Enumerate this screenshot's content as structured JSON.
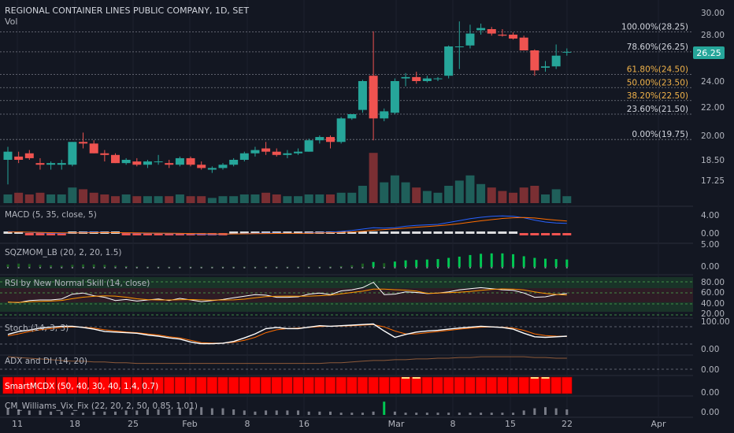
{
  "header": {
    "title": "REGIONAL CONTAINER LINES PUBLIC COMPANY, 1D, SET",
    "vol_label": "Vol"
  },
  "last_price": {
    "label": "26.25",
    "value": 26.25
  },
  "colors": {
    "bg": "#131722",
    "up": "#26a69a",
    "down": "#ef5350",
    "grid": "#2a2e39",
    "text": "#b2b5be",
    "fib": "#f0b24a",
    "smart": "#ff0000"
  },
  "fib_levels": [
    {
      "label": "100.00%(28.25)",
      "value": 28.25,
      "color": "#d1d4dc"
    },
    {
      "label": "78.60%(26.25)",
      "value": 26.25,
      "color": "#d1d4dc"
    },
    {
      "label": "61.80%(24.50)",
      "value": 24.5,
      "color": "#f0b24a"
    },
    {
      "label": "50.00%(23.50)",
      "value": 23.5,
      "color": "#f0b24a"
    },
    {
      "label": "38.20%(22.50)",
      "value": 22.5,
      "color": "#f0b24a"
    },
    {
      "label": "23.60%(21.50)",
      "value": 21.5,
      "color": "#d1d4dc"
    },
    {
      "label": "0.00%(19.75)",
      "value": 19.75,
      "color": "#d1d4dc"
    }
  ],
  "chart_data": {
    "type": "candlestick",
    "price_axis_ticks": [
      "30.00",
      "28.00",
      "26.00",
      "24.00",
      "22.00",
      "20.00",
      "18.50",
      "17.25"
    ],
    "price_axis_values": [
      30,
      28,
      26,
      24,
      22,
      20,
      18.5,
      17.25
    ],
    "x_tick_labels": [
      "11",
      "18",
      "25",
      "Feb",
      "8",
      "16",
      "Mar",
      "8",
      "15",
      "22",
      "Apr"
    ],
    "candles": [
      {
        "o": 18.5,
        "h": 19.3,
        "l": 17.0,
        "c": 19.0
      },
      {
        "o": 18.7,
        "h": 19.0,
        "l": 18.3,
        "c": 18.5
      },
      {
        "o": 18.9,
        "h": 19.1,
        "l": 18.5,
        "c": 18.6
      },
      {
        "o": 18.3,
        "h": 18.6,
        "l": 17.9,
        "c": 18.2
      },
      {
        "o": 18.2,
        "h": 18.4,
        "l": 17.9,
        "c": 18.3
      },
      {
        "o": 18.2,
        "h": 18.5,
        "l": 17.9,
        "c": 18.3
      },
      {
        "o": 18.2,
        "h": 19.6,
        "l": 18.1,
        "c": 19.6
      },
      {
        "o": 19.6,
        "h": 20.2,
        "l": 19.2,
        "c": 19.5
      },
      {
        "o": 19.5,
        "h": 19.7,
        "l": 18.9,
        "c": 18.9
      },
      {
        "o": 18.9,
        "h": 19.1,
        "l": 18.4,
        "c": 18.8
      },
      {
        "o": 18.8,
        "h": 18.9,
        "l": 18.3,
        "c": 18.3
      },
      {
        "o": 18.3,
        "h": 18.6,
        "l": 18.2,
        "c": 18.5
      },
      {
        "o": 18.4,
        "h": 18.6,
        "l": 18.1,
        "c": 18.2
      },
      {
        "o": 18.2,
        "h": 18.5,
        "l": 18.0,
        "c": 18.4
      },
      {
        "o": 18.4,
        "h": 18.8,
        "l": 18.2,
        "c": 18.4
      },
      {
        "o": 18.3,
        "h": 18.5,
        "l": 18.0,
        "c": 18.2
      },
      {
        "o": 18.2,
        "h": 18.7,
        "l": 18.1,
        "c": 18.6
      },
      {
        "o": 18.6,
        "h": 18.7,
        "l": 18.1,
        "c": 18.2
      },
      {
        "o": 18.2,
        "h": 18.4,
        "l": 17.9,
        "c": 18.0
      },
      {
        "o": 17.9,
        "h": 18.1,
        "l": 17.7,
        "c": 18.0
      },
      {
        "o": 18.0,
        "h": 18.3,
        "l": 17.9,
        "c": 18.2
      },
      {
        "o": 18.2,
        "h": 18.6,
        "l": 18.1,
        "c": 18.5
      },
      {
        "o": 18.5,
        "h": 19.0,
        "l": 18.4,
        "c": 18.9
      },
      {
        "o": 18.9,
        "h": 19.3,
        "l": 18.7,
        "c": 19.1
      },
      {
        "o": 19.2,
        "h": 19.6,
        "l": 18.8,
        "c": 19.0
      },
      {
        "o": 19.0,
        "h": 19.2,
        "l": 18.7,
        "c": 18.8
      },
      {
        "o": 18.8,
        "h": 19.1,
        "l": 18.6,
        "c": 18.9
      },
      {
        "o": 18.9,
        "h": 19.2,
        "l": 18.8,
        "c": 19.0
      },
      {
        "o": 19.0,
        "h": 19.8,
        "l": 19.0,
        "c": 19.7
      },
      {
        "o": 19.7,
        "h": 20.0,
        "l": 19.5,
        "c": 19.9
      },
      {
        "o": 19.9,
        "h": 20.0,
        "l": 19.2,
        "c": 19.6
      },
      {
        "o": 19.6,
        "h": 21.3,
        "l": 19.5,
        "c": 21.2
      },
      {
        "o": 21.2,
        "h": 21.5,
        "l": 21.1,
        "c": 21.5
      },
      {
        "o": 21.8,
        "h": 24.1,
        "l": 21.6,
        "c": 24.0
      },
      {
        "o": 24.4,
        "h": 28.3,
        "l": 19.7,
        "c": 21.2
      },
      {
        "o": 21.2,
        "h": 21.9,
        "l": 21.0,
        "c": 21.7
      },
      {
        "o": 21.6,
        "h": 24.2,
        "l": 21.5,
        "c": 24.0
      },
      {
        "o": 24.2,
        "h": 24.6,
        "l": 23.6,
        "c": 24.3
      },
      {
        "o": 24.3,
        "h": 24.7,
        "l": 23.8,
        "c": 24.0
      },
      {
        "o": 24.0,
        "h": 24.4,
        "l": 23.9,
        "c": 24.2
      },
      {
        "o": 24.2,
        "h": 24.3,
        "l": 24.0,
        "c": 24.2
      },
      {
        "o": 24.4,
        "h": 26.9,
        "l": 24.2,
        "c": 26.8
      },
      {
        "o": 26.8,
        "h": 29.2,
        "l": 24.9,
        "c": 26.8
      },
      {
        "o": 26.9,
        "h": 28.9,
        "l": 26.6,
        "c": 28.1
      },
      {
        "o": 28.4,
        "h": 29.0,
        "l": 28.0,
        "c": 28.6
      },
      {
        "o": 28.5,
        "h": 28.7,
        "l": 27.9,
        "c": 28.1
      },
      {
        "o": 28.0,
        "h": 28.5,
        "l": 27.8,
        "c": 27.9
      },
      {
        "o": 28.0,
        "h": 28.2,
        "l": 27.5,
        "c": 27.6
      },
      {
        "o": 27.7,
        "h": 27.9,
        "l": 26.5,
        "c": 26.4
      },
      {
        "o": 26.4,
        "h": 26.5,
        "l": 24.4,
        "c": 24.8
      },
      {
        "o": 25.0,
        "h": 25.5,
        "l": 24.7,
        "c": 25.1
      },
      {
        "o": 25.1,
        "h": 27.0,
        "l": 24.9,
        "c": 25.9
      },
      {
        "o": 26.2,
        "h": 26.6,
        "l": 25.9,
        "c": 26.25
      }
    ],
    "volume": [
      0.5,
      0.6,
      0.5,
      0.6,
      0.5,
      0.5,
      0.9,
      0.8,
      0.6,
      0.5,
      0.4,
      0.5,
      0.4,
      0.4,
      0.4,
      0.4,
      0.5,
      0.4,
      0.4,
      0.3,
      0.4,
      0.4,
      0.5,
      0.5,
      0.6,
      0.5,
      0.4,
      0.4,
      0.5,
      0.5,
      0.5,
      0.6,
      0.6,
      1.0,
      2.9,
      1.2,
      1.6,
      1.2,
      0.9,
      0.7,
      0.6,
      1.0,
      1.3,
      1.6,
      1.1,
      0.9,
      0.7,
      0.6,
      0.9,
      1.0,
      0.5,
      0.8,
      0.4
    ],
    "indicators": [
      {
        "label": "MACD (5, 35, close, 5)",
        "ticks": [
          "4.00",
          "0.00"
        ]
      },
      {
        "label": "SQZMOM_LB (20, 2, 20, 1.5)",
        "ticks": [
          "5.00",
          "0.00"
        ]
      },
      {
        "label": "RSI by New Normal Skill (14, close)",
        "ticks": [
          "80.00",
          "60.00",
          "40.00",
          "20.00"
        ]
      },
      {
        "label": "Stoch (14, 3, 3)",
        "ticks": [
          "100.00",
          "0.00"
        ]
      },
      {
        "label": "ADX and DI (14, 20)",
        "ticks": [
          "0.00"
        ]
      },
      {
        "label": "SmartMCDX (50, 40, 30, 40, 1.4, 0.7)",
        "ticks": [
          "0.00"
        ]
      },
      {
        "label": "CM_Williams_Vix_Fix (22, 20, 2, 50, 0.85, 1.01)",
        "ticks": [
          "0.00"
        ]
      }
    ],
    "rsi": [
      43,
      42,
      46,
      47,
      47,
      49,
      58,
      60,
      55,
      52,
      46,
      48,
      45,
      47,
      49,
      46,
      50,
      47,
      44,
      46,
      48,
      51,
      54,
      57,
      56,
      52,
      52,
      53,
      58,
      60,
      57,
      64,
      66,
      70,
      80,
      57,
      58,
      62,
      61,
      59,
      60,
      62,
      66,
      68,
      70,
      68,
      66,
      65,
      60,
      52,
      53,
      57,
      59
    ],
    "stoch_k": [
      60,
      70,
      75,
      82,
      85,
      88,
      88,
      84,
      78,
      70,
      68,
      66,
      64,
      58,
      54,
      48,
      44,
      34,
      28,
      28,
      30,
      36,
      48,
      62,
      80,
      84,
      80,
      80,
      85,
      90,
      88,
      90,
      92,
      94,
      96,
      72,
      50,
      60,
      68,
      72,
      74,
      78,
      82,
      85,
      88,
      86,
      84,
      78,
      64,
      52,
      50,
      52,
      54
    ],
    "stoch_d": [
      55,
      62,
      70,
      76,
      80,
      84,
      86,
      85,
      82,
      76,
      72,
      68,
      66,
      62,
      58,
      52,
      48,
      40,
      32,
      30,
      30,
      33,
      40,
      50,
      66,
      76,
      80,
      82,
      84,
      87,
      88,
      89,
      90,
      92,
      94,
      86,
      72,
      62,
      62,
      66,
      70,
      74,
      78,
      82,
      85,
      86,
      85,
      82,
      74,
      62,
      56,
      54,
      53
    ],
    "macd": [
      0.5,
      0.4,
      0.3,
      0.2,
      0.15,
      0.1,
      0.2,
      0.3,
      0.35,
      0.3,
      0.25,
      0.2,
      0.15,
      0.1,
      0.1,
      0.05,
      0.05,
      0.0,
      -0.1,
      -0.15,
      -0.1,
      0.0,
      0.05,
      0.1,
      0.15,
      0.15,
      0.1,
      0.1,
      0.2,
      0.3,
      0.35,
      0.5,
      0.7,
      1.0,
      1.3,
      1.2,
      1.3,
      1.6,
      1.8,
      1.9,
      2.0,
      2.4,
      2.8,
      3.2,
      3.5,
      3.7,
      3.8,
      3.7,
      3.4,
      2.9,
      2.5,
      2.3,
      2.2
    ],
    "signal": [
      0.4,
      0.4,
      0.35,
      0.3,
      0.25,
      0.2,
      0.2,
      0.22,
      0.25,
      0.26,
      0.25,
      0.23,
      0.2,
      0.17,
      0.15,
      0.12,
      0.1,
      0.07,
      0.03,
      -0.02,
      -0.03,
      -0.02,
      0.0,
      0.03,
      0.06,
      0.09,
      0.1,
      0.1,
      0.13,
      0.18,
      0.23,
      0.3,
      0.4,
      0.55,
      0.75,
      0.9,
      1.05,
      1.2,
      1.4,
      1.55,
      1.7,
      1.9,
      2.15,
      2.45,
      2.75,
      3.0,
      3.25,
      3.4,
      3.45,
      3.35,
      3.1,
      2.9,
      2.7
    ],
    "sqz": [
      0.6,
      0.8,
      0.7,
      0.5,
      0.4,
      0.3,
      0.5,
      0.6,
      0.6,
      0.5,
      0.3,
      0.2,
      0.1,
      0.05,
      0.05,
      0.05,
      0.05,
      0.05,
      0.05,
      0.05,
      0.05,
      0.05,
      0.05,
      0.05,
      0.05,
      0.05,
      0.05,
      0.05,
      0.05,
      0.05,
      0.1,
      0.2,
      0.4,
      0.8,
      1.2,
      0.9,
      1.3,
      1.6,
      1.7,
      1.8,
      1.9,
      2.2,
      2.5,
      2.9,
      3.2,
      3.3,
      3.3,
      3.1,
      2.6,
      2.2,
      2.0,
      1.9,
      1.8
    ],
    "adx": [
      22,
      21,
      20,
      19,
      18,
      17,
      16,
      16,
      15,
      15,
      14,
      14,
      13,
      13,
      13,
      13,
      13,
      13,
      13,
      13,
      13,
      13,
      13,
      13,
      13,
      13,
      13,
      13,
      13,
      13,
      14,
      14,
      15,
      16,
      17,
      17,
      18,
      18,
      19,
      19,
      20,
      20,
      21,
      21,
      22,
      22,
      22,
      22,
      22,
      21,
      21,
      20,
      20
    ],
    "vix": [
      0.6,
      0.5,
      0.4,
      0.4,
      0.3,
      0.3,
      0.2,
      0.2,
      0.3,
      0.3,
      0.3,
      0.4,
      0.4,
      0.5,
      0.5,
      0.5,
      0.6,
      0.6,
      0.7,
      0.6,
      0.6,
      0.5,
      0.4,
      0.3,
      0.4,
      0.4,
      0.4,
      0.4,
      0.3,
      0.3,
      0.3,
      0.2,
      0.2,
      0.2,
      0.3,
      1.2,
      0.3,
      0.2,
      0.2,
      0.2,
      0.2,
      0.2,
      0.2,
      0.2,
      0.2,
      0.2,
      0.2,
      0.2,
      0.4,
      0.6,
      0.7,
      0.6,
      0.5
    ]
  }
}
